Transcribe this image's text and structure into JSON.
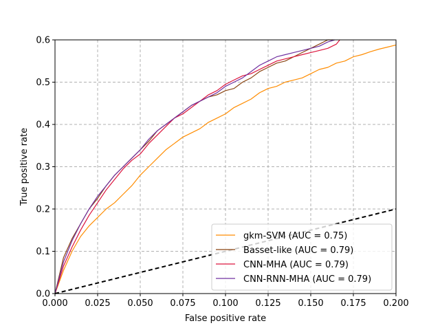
{
  "chart_data": {
    "type": "line",
    "xlabel": "False positive rate",
    "ylabel": "True positive rate",
    "xlim": [
      0.0,
      0.2
    ],
    "ylim": [
      0.0,
      0.6
    ],
    "x_ticks": [
      "0.000",
      "0.025",
      "0.050",
      "0.075",
      "0.100",
      "0.125",
      "0.150",
      "0.175",
      "0.200"
    ],
    "y_ticks": [
      "0.0",
      "0.1",
      "0.2",
      "0.3",
      "0.4",
      "0.5",
      "0.6"
    ],
    "grid": true,
    "legend_position": "lower-right",
    "series": [
      {
        "name": "gkm-SVM (AUC = 0.75)",
        "color": "#ff8c00",
        "x": [
          0.0,
          0.005,
          0.01,
          0.015,
          0.02,
          0.025,
          0.03,
          0.035,
          0.04,
          0.045,
          0.05,
          0.055,
          0.06,
          0.065,
          0.07,
          0.075,
          0.08,
          0.085,
          0.09,
          0.095,
          0.1,
          0.105,
          0.11,
          0.115,
          0.12,
          0.125,
          0.13,
          0.135,
          0.14,
          0.145,
          0.15,
          0.155,
          0.16,
          0.165,
          0.17,
          0.175,
          0.18,
          0.185,
          0.19,
          0.195,
          0.2
        ],
        "y": [
          0.0,
          0.055,
          0.1,
          0.135,
          0.16,
          0.18,
          0.2,
          0.215,
          0.235,
          0.255,
          0.28,
          0.3,
          0.32,
          0.34,
          0.355,
          0.37,
          0.38,
          0.39,
          0.405,
          0.415,
          0.425,
          0.44,
          0.45,
          0.46,
          0.475,
          0.485,
          0.49,
          0.5,
          0.505,
          0.51,
          0.52,
          0.53,
          0.535,
          0.545,
          0.55,
          0.56,
          0.565,
          0.572,
          0.578,
          0.583,
          0.588
        ]
      },
      {
        "name": "Basset-like (AUC = 0.79)",
        "color": "#8b4513",
        "x": [
          0.0,
          0.005,
          0.01,
          0.015,
          0.02,
          0.025,
          0.03,
          0.035,
          0.04,
          0.045,
          0.05,
          0.055,
          0.06,
          0.065,
          0.07,
          0.075,
          0.08,
          0.085,
          0.09,
          0.095,
          0.1,
          0.105,
          0.11,
          0.115,
          0.12,
          0.125,
          0.13,
          0.135,
          0.14,
          0.145,
          0.15,
          0.155,
          0.16,
          0.163
        ],
        "y": [
          0.0,
          0.085,
          0.13,
          0.165,
          0.2,
          0.225,
          0.255,
          0.28,
          0.3,
          0.32,
          0.34,
          0.36,
          0.385,
          0.4,
          0.415,
          0.43,
          0.445,
          0.455,
          0.465,
          0.47,
          0.48,
          0.485,
          0.5,
          0.51,
          0.525,
          0.535,
          0.545,
          0.55,
          0.56,
          0.57,
          0.58,
          0.59,
          0.6,
          0.6
        ]
      },
      {
        "name": "CNN-MHA (AUC = 0.79)",
        "color": "#dc143c",
        "x": [
          0.0,
          0.005,
          0.01,
          0.015,
          0.02,
          0.025,
          0.03,
          0.035,
          0.04,
          0.045,
          0.05,
          0.055,
          0.06,
          0.065,
          0.07,
          0.075,
          0.08,
          0.085,
          0.09,
          0.095,
          0.1,
          0.105,
          0.11,
          0.115,
          0.12,
          0.125,
          0.13,
          0.135,
          0.14,
          0.145,
          0.15,
          0.155,
          0.16,
          0.165,
          0.167
        ],
        "y": [
          0.0,
          0.065,
          0.11,
          0.15,
          0.185,
          0.215,
          0.245,
          0.27,
          0.295,
          0.315,
          0.33,
          0.355,
          0.375,
          0.395,
          0.415,
          0.425,
          0.44,
          0.455,
          0.47,
          0.48,
          0.495,
          0.505,
          0.515,
          0.52,
          0.53,
          0.54,
          0.55,
          0.555,
          0.56,
          0.565,
          0.57,
          0.575,
          0.58,
          0.59,
          0.6
        ]
      },
      {
        "name": "CNN-RNN-MHA (AUC = 0.79)",
        "color": "#7030a0",
        "x": [
          0.0,
          0.005,
          0.01,
          0.015,
          0.02,
          0.025,
          0.03,
          0.035,
          0.04,
          0.045,
          0.05,
          0.055,
          0.06,
          0.065,
          0.07,
          0.075,
          0.08,
          0.085,
          0.09,
          0.095,
          0.1,
          0.105,
          0.11,
          0.115,
          0.12,
          0.125,
          0.13,
          0.135,
          0.14,
          0.145,
          0.15,
          0.155,
          0.16,
          0.164
        ],
        "y": [
          0.0,
          0.075,
          0.125,
          0.165,
          0.2,
          0.23,
          0.255,
          0.28,
          0.3,
          0.32,
          0.34,
          0.365,
          0.385,
          0.4,
          0.415,
          0.43,
          0.445,
          0.455,
          0.465,
          0.475,
          0.49,
          0.5,
          0.51,
          0.525,
          0.54,
          0.55,
          0.56,
          0.565,
          0.57,
          0.575,
          0.58,
          0.585,
          0.595,
          0.6
        ]
      },
      {
        "color": "#000000",
        "dashed": true,
        "x": [
          0.0,
          0.2
        ],
        "y": [
          0.0,
          0.2
        ]
      }
    ]
  }
}
